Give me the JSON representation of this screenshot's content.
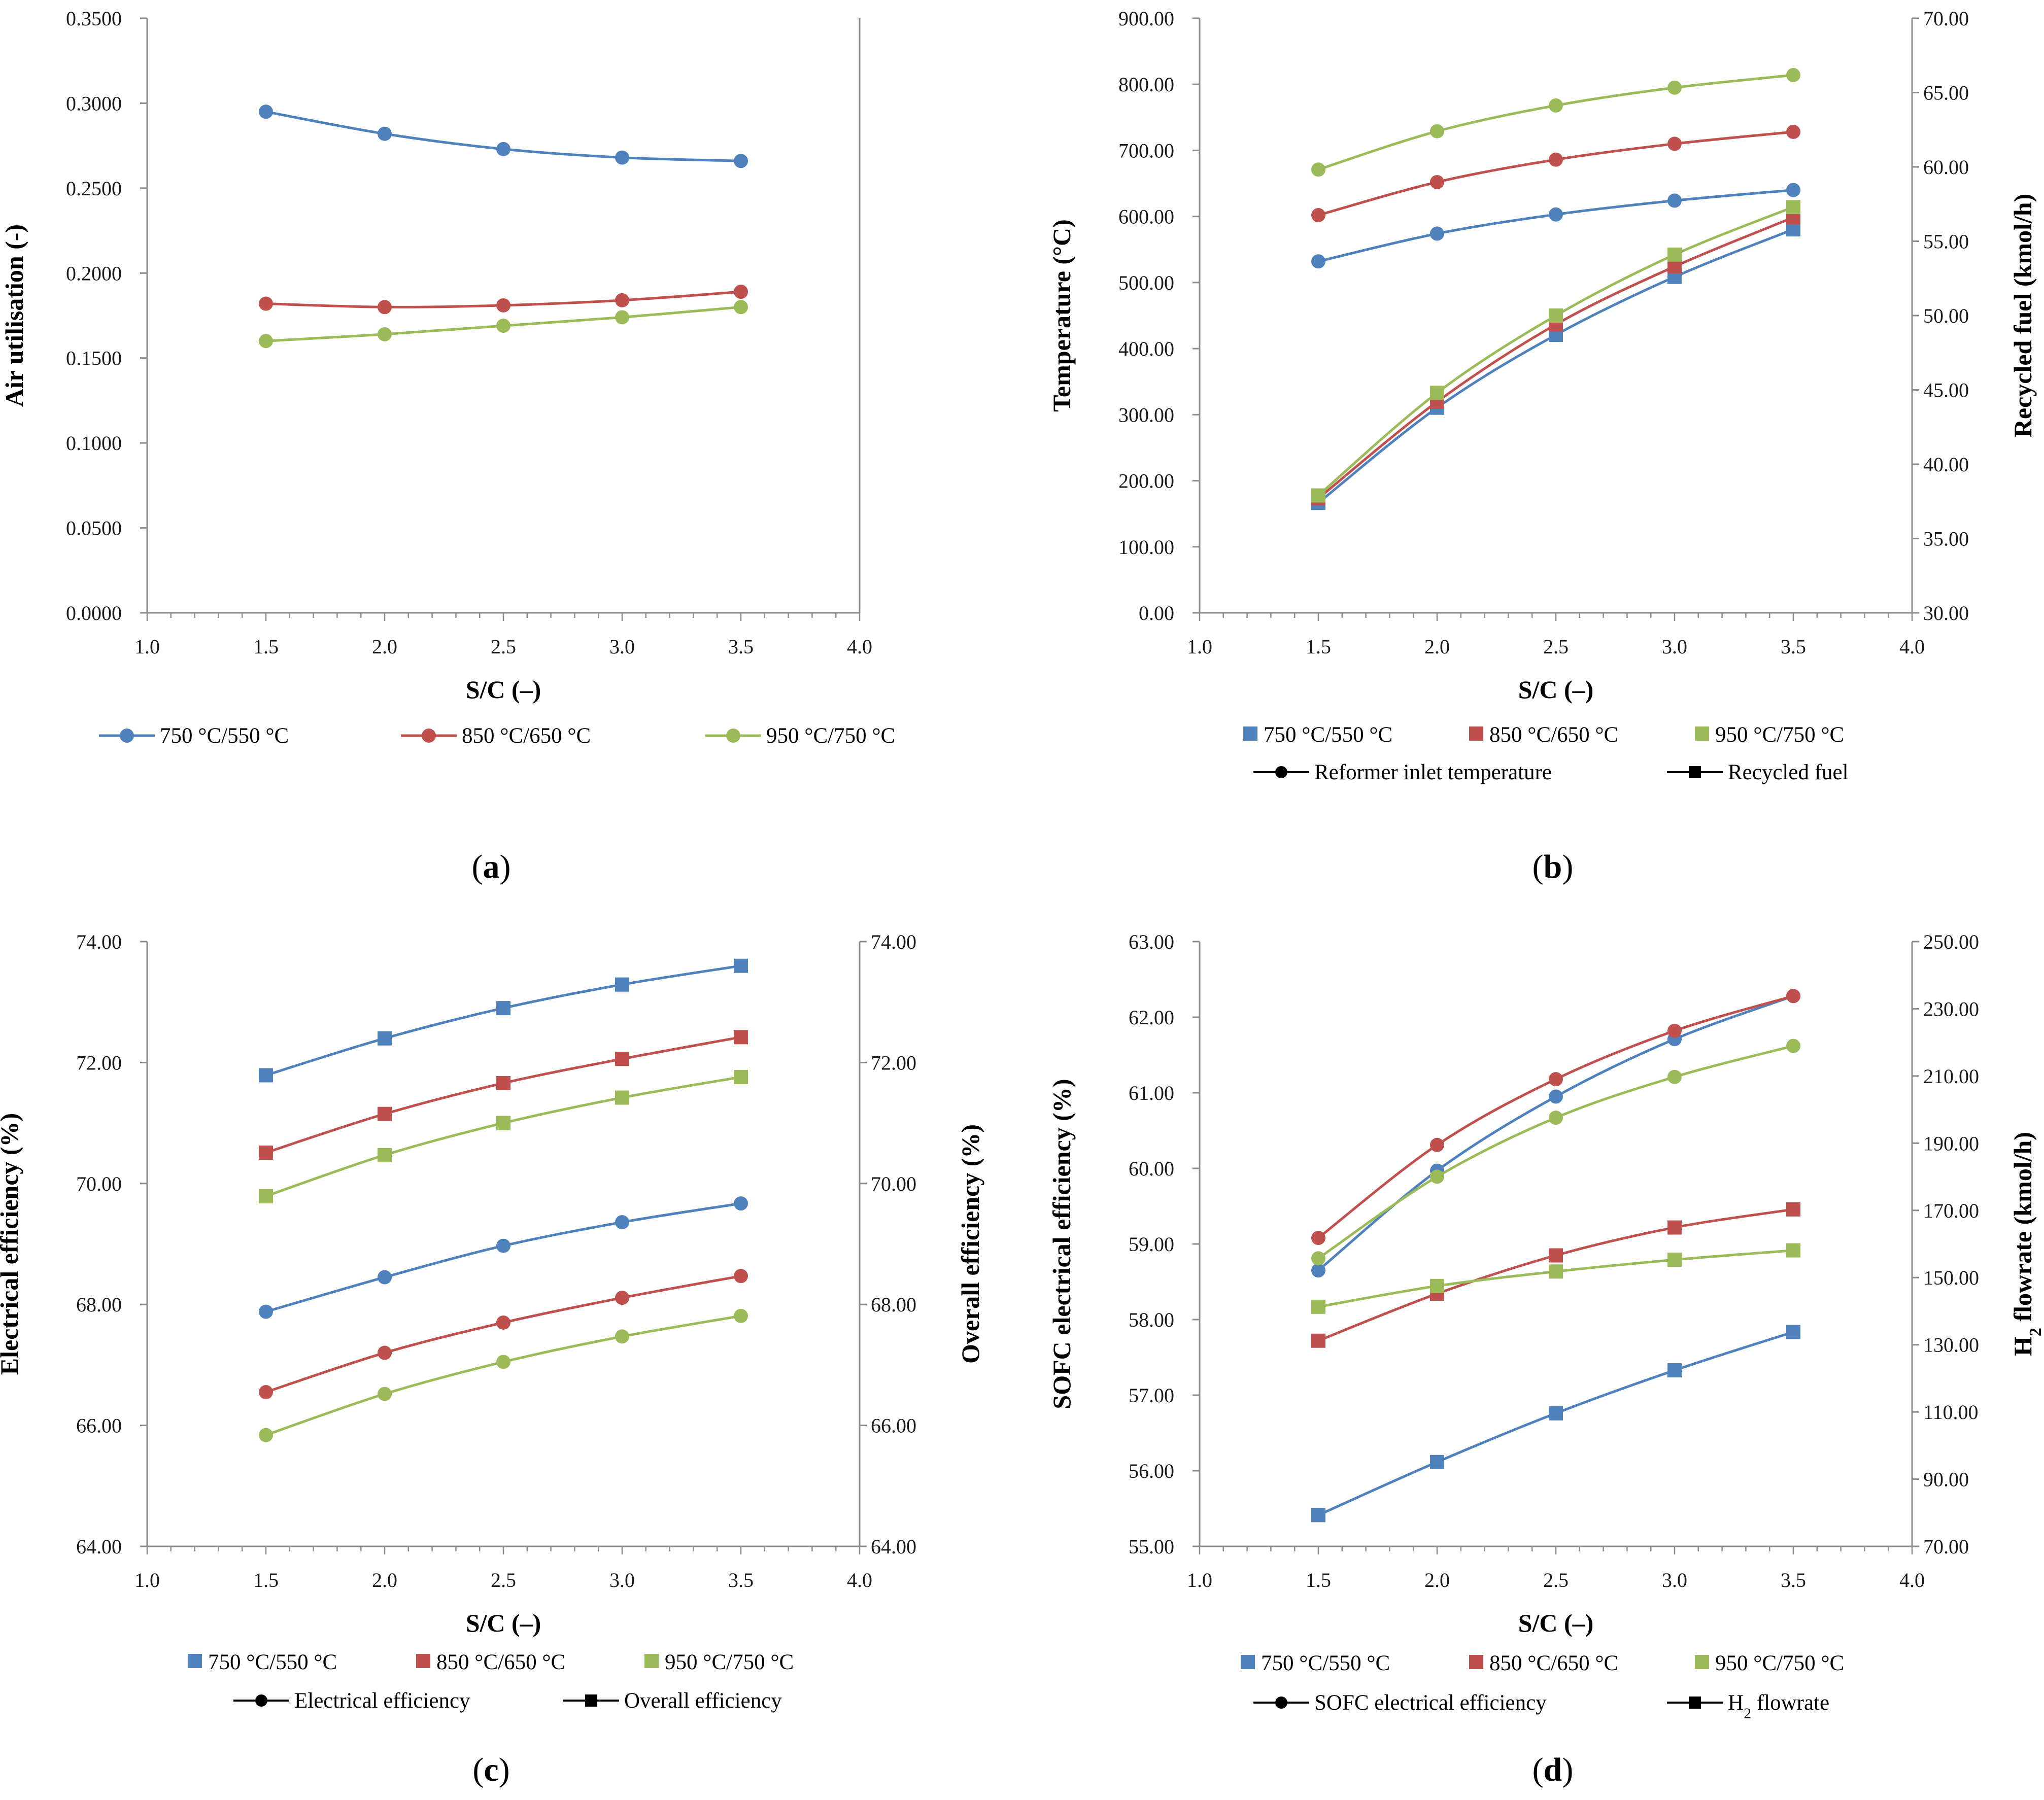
{
  "colors": {
    "blue": "#4f81bd",
    "red": "#c0504d",
    "green": "#9bbb59",
    "axis": "#8c8c8c",
    "black": "#000000"
  },
  "series_names": [
    "750 °C/550 °C",
    "850 °C/650 °C",
    "950 °C/750 °C"
  ],
  "chart_data": [
    {
      "type": "line",
      "panel": "(a)",
      "panel_letter": "a",
      "x": [
        1.5,
        2.0,
        2.5,
        3.0,
        3.5
      ],
      "xlim": [
        1.0,
        4.0
      ],
      "xticks": [
        "1.0",
        "1.5",
        "2.0",
        "2.5",
        "3.0",
        "3.5",
        "4.0"
      ],
      "xlabel": "S/C (–)",
      "ylabel": "Air utilisation (-)",
      "ylim": [
        0,
        0.35
      ],
      "yticks": [
        "0.0000",
        "0.0500",
        "0.1000",
        "0.1500",
        "0.2000",
        "0.2500",
        "0.3000",
        "0.3500"
      ],
      "series": [
        {
          "name": "750 °C/550 °C",
          "color": "blue",
          "marker": "circle",
          "axis": "left",
          "values": [
            0.295,
            0.282,
            0.273,
            0.268,
            0.266
          ]
        },
        {
          "name": "850 °C/650 °C",
          "color": "red",
          "marker": "circle",
          "axis": "left",
          "values": [
            0.182,
            0.18,
            0.181,
            0.184,
            0.189
          ]
        },
        {
          "name": "950 °C/750 °C",
          "color": "green",
          "marker": "circle",
          "axis": "left",
          "values": [
            0.16,
            0.164,
            0.169,
            0.174,
            0.18
          ]
        }
      ],
      "legend": {
        "entries": [
          "750 °C/550 °C",
          "850 °C/650 °C",
          "950 °C/750 °C"
        ],
        "style": "line-circle"
      }
    },
    {
      "type": "line",
      "panel": "(b)",
      "panel_letter": "b",
      "x": [
        1.5,
        2.0,
        2.5,
        3.0,
        3.5
      ],
      "xlim": [
        1.0,
        4.0
      ],
      "xticks": [
        "1.0",
        "1.5",
        "2.0",
        "2.5",
        "3.0",
        "3.5",
        "4.0"
      ],
      "xlabel": "S/C (–)",
      "ylabel": "Temperature (°C)",
      "ylim": [
        0,
        900
      ],
      "yticks": [
        "0.00",
        "100.00",
        "200.00",
        "300.00",
        "400.00",
        "500.00",
        "600.00",
        "700.00",
        "800.00",
        "900.00"
      ],
      "y2label": "Recycled fuel (kmol/h)",
      "y2lim": [
        30,
        70
      ],
      "y2ticks": [
        "30.00",
        "35.00",
        "40.00",
        "45.00",
        "50.00",
        "55.00",
        "60.00",
        "65.00",
        "70.00"
      ],
      "series": [
        {
          "name": "Reformer inlet temperature 750 °C/550 °C",
          "color": "blue",
          "marker": "circle",
          "axis": "left",
          "values": [
            532,
            574,
            603,
            624,
            640
          ]
        },
        {
          "name": "Reformer inlet temperature 850 °C/650 °C",
          "color": "red",
          "marker": "circle",
          "axis": "left",
          "values": [
            602,
            652,
            686,
            710,
            728
          ]
        },
        {
          "name": "Reformer inlet temperature 950 °C/750 °C",
          "color": "green",
          "marker": "circle",
          "axis": "left",
          "values": [
            671,
            729,
            768,
            795,
            814
          ]
        },
        {
          "name": "Recycled fuel 750 °C/550 °C",
          "color": "blue",
          "marker": "square",
          "axis": "right",
          "values": [
            37.4,
            43.8,
            48.7,
            52.6,
            55.8
          ]
        },
        {
          "name": "Recycled fuel 850 °C/650 °C",
          "color": "red",
          "marker": "square",
          "axis": "right",
          "values": [
            37.7,
            44.2,
            49.4,
            53.3,
            56.6
          ]
        },
        {
          "name": "Recycled fuel 950 °C/750 °C",
          "color": "green",
          "marker": "square",
          "axis": "right",
          "values": [
            37.9,
            44.8,
            50.0,
            54.1,
            57.3
          ]
        }
      ],
      "legend": {
        "entries": [
          "750 °C/550 °C",
          "850 °C/650 °C",
          "950 °C/750 °C"
        ],
        "style": "square",
        "type_entries": [
          "Reformer inlet temperature",
          "Recycled fuel"
        ]
      }
    },
    {
      "type": "line",
      "panel": "(c)",
      "panel_letter": "c",
      "x": [
        1.5,
        2.0,
        2.5,
        3.0,
        3.5
      ],
      "xlim": [
        1.0,
        4.0
      ],
      "xticks": [
        "1.0",
        "1.5",
        "2.0",
        "2.5",
        "3.0",
        "3.5",
        "4.0"
      ],
      "xlabel": "S/C (–)",
      "ylabel": "Electrical efficiency (%)",
      "ylim": [
        64,
        74
      ],
      "yticks": [
        "64.00",
        "66.00",
        "68.00",
        "70.00",
        "72.00",
        "74.00"
      ],
      "y2label": "Overall efficiency (%)",
      "y2lim": [
        64,
        74
      ],
      "y2ticks": [
        "64.00",
        "66.00",
        "68.00",
        "70.00",
        "72.00",
        "74.00"
      ],
      "series": [
        {
          "name": "Electrical efficiency 750 °C/550 °C",
          "color": "blue",
          "marker": "circle",
          "axis": "left",
          "values": [
            67.88,
            68.45,
            68.97,
            69.36,
            69.67
          ]
        },
        {
          "name": "Electrical efficiency 850 °C/650 °C",
          "color": "red",
          "marker": "circle",
          "axis": "left",
          "values": [
            66.55,
            67.2,
            67.7,
            68.11,
            68.47
          ]
        },
        {
          "name": "Electrical efficiency 950 °C/750 °C",
          "color": "green",
          "marker": "circle",
          "axis": "left",
          "values": [
            65.84,
            66.52,
            67.05,
            67.47,
            67.81
          ]
        },
        {
          "name": "Overall efficiency 750 °C/550 °C",
          "color": "blue",
          "marker": "square",
          "axis": "right",
          "values": [
            71.79,
            72.4,
            72.9,
            73.29,
            73.6
          ]
        },
        {
          "name": "Overall efficiency 850 °C/650 °C",
          "color": "red",
          "marker": "square",
          "axis": "right",
          "values": [
            70.51,
            71.15,
            71.66,
            72.06,
            72.42
          ]
        },
        {
          "name": "Overall efficiency 950 °C/750 °C",
          "color": "green",
          "marker": "square",
          "axis": "right",
          "values": [
            69.79,
            70.47,
            71.0,
            71.42,
            71.76
          ]
        }
      ],
      "legend": {
        "entries": [
          "750 °C/550 °C",
          "850 °C/650 °C",
          "950 °C/750 °C"
        ],
        "style": "square",
        "type_entries": [
          "Electrical efficiency",
          "Overall efficiency"
        ]
      }
    },
    {
      "type": "line",
      "panel": "(d)",
      "panel_letter": "d",
      "x": [
        1.5,
        2.0,
        2.5,
        3.0,
        3.5
      ],
      "xlim": [
        1.0,
        4.0
      ],
      "xticks": [
        "1.0",
        "1.5",
        "2.0",
        "2.5",
        "3.0",
        "3.5",
        "4.0"
      ],
      "xlabel": "S/C (–)",
      "ylabel": "SOFC electrical efficiency (%)",
      "ylim": [
        55,
        63
      ],
      "yticks": [
        "55.00",
        "56.00",
        "57.00",
        "58.00",
        "59.00",
        "60.00",
        "61.00",
        "62.00",
        "63.00"
      ],
      "y2label": "H2 flowrate (kmol/h)",
      "y2label_main": "H",
      "y2label_sub": "2",
      "y2label_rest": " flowrate (kmol/h)",
      "y2lim": [
        70,
        250
      ],
      "y2ticks": [
        "70.00",
        "90.00",
        "110.00",
        "130.00",
        "150.00",
        "170.00",
        "190.00",
        "210.00",
        "230.00",
        "250.00"
      ],
      "series": [
        {
          "name": "SOFC electrical efficiency 750 °C/550 °C",
          "color": "blue",
          "marker": "circle",
          "axis": "left",
          "values": [
            58.65,
            59.97,
            60.95,
            61.71,
            62.28
          ]
        },
        {
          "name": "SOFC electrical efficiency 850 °C/650 °C",
          "color": "red",
          "marker": "circle",
          "axis": "left",
          "values": [
            59.08,
            60.31,
            61.18,
            61.82,
            62.28
          ]
        },
        {
          "name": "SOFC electrical efficiency 950 °C/750 °C",
          "color": "green",
          "marker": "circle",
          "axis": "left",
          "values": [
            58.81,
            59.89,
            60.67,
            61.21,
            61.62
          ]
        },
        {
          "name": "H2 flowrate 750 °C/550 °C",
          "color": "blue",
          "marker": "square",
          "axis": "right",
          "values": [
            79.3,
            95.1,
            109.6,
            122.4,
            133.8
          ]
        },
        {
          "name": "H2 flowrate 850 °C/650 °C",
          "color": "red",
          "marker": "square",
          "axis": "right",
          "values": [
            131.2,
            145.2,
            156.6,
            164.9,
            170.3
          ]
        },
        {
          "name": "H2 flowrate 950 °C/750 °C",
          "color": "green",
          "marker": "square",
          "axis": "right",
          "values": [
            141.3,
            147.5,
            151.8,
            155.3,
            158.1
          ]
        }
      ],
      "legend": {
        "entries": [
          "750 °C/550 °C",
          "850 °C/650 °C",
          "950 °C/750 °C"
        ],
        "style": "square",
        "type_entries": [
          "SOFC electrical efficiency",
          "H2 flowrate"
        ]
      }
    }
  ]
}
